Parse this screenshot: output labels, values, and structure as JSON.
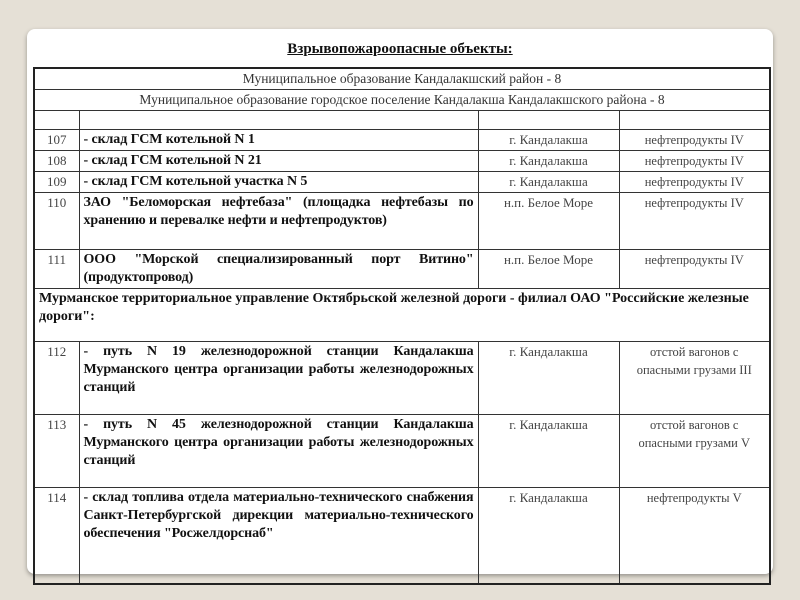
{
  "title": "Взрывопожароопасные объекты:",
  "header_rows": [
    "Муниципальное образование Кандалакшский район - 8",
    "Муниципальное образование городское поселение Кандалакша Кандалакшского района - 8"
  ],
  "rows_a": [
    {
      "num": "107",
      "name": "- склад ГСМ котельной N 1",
      "place": "г. Кандалакша",
      "type": "нефтепродукты IV"
    },
    {
      "num": "108",
      "name": "- склад ГСМ котельной N 21",
      "place": "г. Кандалакша",
      "type": "нефтепродукты IV"
    },
    {
      "num": "109",
      "name": "- склад ГСМ котельной участка N 5",
      "place": "г. Кандалакша",
      "type": "нефтепродукты IV"
    },
    {
      "num": "110",
      "name": "ЗАО \"Беломорская нефтебаза\" (площадка нефтебазы по хранению и перевалке нефти и нефтепродуктов)",
      "place": "н.п. Белое Море",
      "type": "нефтепродукты IV"
    },
    {
      "num": "111",
      "name": "ООО \"Морской специализированный порт Витино\" (продуктопровод)",
      "place": "н.п. Белое Море",
      "type": "нефтепродукты IV"
    }
  ],
  "section": "Мурманское территориальное управление Октябрьской железной дороги - филиал ОАО \"Российские железные дороги\":",
  "rows_b": [
    {
      "num": "112",
      "name": "- путь N 19 железнодорожной станции Кандалакша Мурманского центра организации работы железнодорожных станций",
      "place": "г. Кандалакша",
      "type": "отстой вагонов с опасными грузами III"
    },
    {
      "num": "113",
      "name": "- путь N 45 железнодорожной станции Кандалакша Мурманского центра организации работы железнодорожных станций",
      "place": "г. Кандалакша",
      "type": "отстой вагонов с опасными грузами V"
    },
    {
      "num": "114",
      "name": "- склад топлива отдела материально-технического снабжения Санкт-Петербургской дирекции материально-технического обеспечения \"Росжелдорснаб\"",
      "place": "г. Кандалакша",
      "type": "нефтепродукты V"
    }
  ]
}
